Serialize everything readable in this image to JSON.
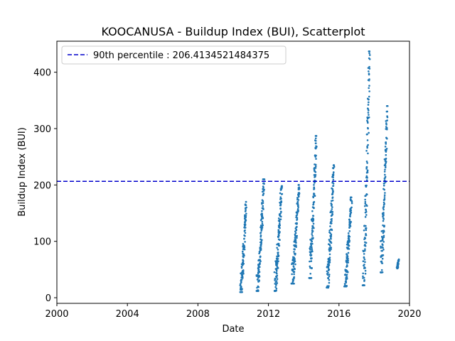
{
  "chart_data": {
    "type": "scatter",
    "title": "KOOCANUSA - Buildup Index (BUI), Scatterplot",
    "xlabel": "Date",
    "ylabel": "Buildup Index (BUI)",
    "xlim": [
      "2000-01-01",
      "2020-01-01"
    ],
    "ylim": [
      -10,
      455
    ],
    "x_ticks": [
      "2000",
      "2004",
      "2008",
      "2012",
      "2016",
      "2020"
    ],
    "y_ticks": [
      0,
      100,
      200,
      300,
      400
    ],
    "grid": false,
    "legend": {
      "placement": "top-left",
      "entries": [
        {
          "label": "90th percentile : 206.4134521484375",
          "style": "dashed-line",
          "color": "#0000cc"
        }
      ]
    },
    "reference_line": {
      "name": "90th percentile : 206.4134521484375",
      "value": 206.4134521484375,
      "color": "#0000cc",
      "style": "dashed",
      "x_start": "2000-01-01",
      "x_end": "2020-01-01"
    },
    "series": [
      {
        "color": "#1f77b4",
        "segments": [
          {
            "x_start": "2010-06-01",
            "x_end": "2010-09-25",
            "y_start": 10,
            "y_end": 170
          },
          {
            "x_start": "2011-05-10",
            "x_end": "2011-09-30",
            "y_start": 12,
            "y_end": 210
          },
          {
            "x_start": "2012-05-10",
            "x_end": "2012-09-30",
            "y_start": 12,
            "y_end": 198
          },
          {
            "x_start": "2013-05-01",
            "x_end": "2013-09-25",
            "y_start": 25,
            "y_end": 200
          },
          {
            "x_start": "2014-05-01",
            "x_end": "2014-09-20",
            "y_start": 35,
            "y_end": 287
          },
          {
            "x_start": "2015-05-01",
            "x_end": "2015-09-15",
            "y_start": 18,
            "y_end": 235
          },
          {
            "x_start": "2016-05-01",
            "x_end": "2016-09-15",
            "y_start": 20,
            "y_end": 178
          },
          {
            "x_start": "2017-05-15",
            "x_end": "2017-09-25",
            "y_start": 22,
            "y_end": 437
          },
          {
            "x_start": "2018-05-15",
            "x_end": "2018-09-25",
            "y_start": 45,
            "y_end": 340
          },
          {
            "x_start": "2019-04-20",
            "x_end": "2019-05-25",
            "y_start": 52,
            "y_end": 68
          }
        ]
      }
    ]
  }
}
